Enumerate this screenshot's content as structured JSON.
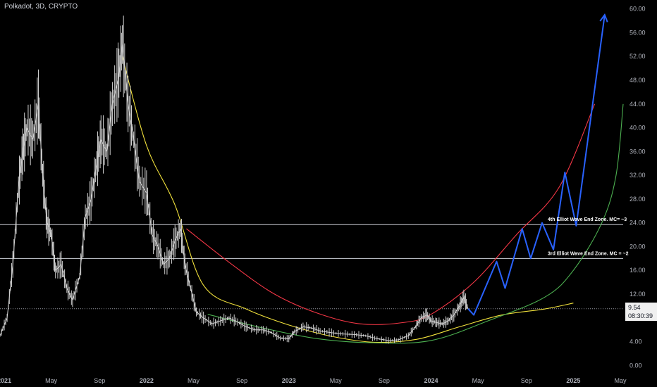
{
  "header": {
    "title": "Polkadot, 3D, CRYPTO"
  },
  "current_price": {
    "value": "9.54",
    "countdown": "08:30:39"
  },
  "chart_data": {
    "type": "line",
    "title": "Polkadot, 3D, CRYPTO",
    "xlabel": "",
    "ylabel": "",
    "ylim": [
      -1.5,
      61.5
    ],
    "xlim": [
      2020.97,
      2025.35
    ],
    "grid": false,
    "y_ticks": [
      "60.00",
      "56.00",
      "52.00",
      "48.00",
      "44.00",
      "40.00",
      "36.00",
      "32.00",
      "28.00",
      "24.00",
      "20.00",
      "16.00",
      "12.00",
      "8.00",
      "4.00",
      "0.00"
    ],
    "x_ticks": [
      {
        "label": "2021",
        "x": 2021.0
      },
      {
        "label": "May",
        "x": 2021.33
      },
      {
        "label": "Sep",
        "x": 2021.67
      },
      {
        "label": "2022",
        "x": 2022.0
      },
      {
        "label": "May",
        "x": 2022.33
      },
      {
        "label": "Sep",
        "x": 2022.67
      },
      {
        "label": "2023",
        "x": 2023.0
      },
      {
        "label": "May",
        "x": 2023.33
      },
      {
        "label": "Sep",
        "x": 2023.67
      },
      {
        "label": "2024",
        "x": 2024.0
      },
      {
        "label": "May",
        "x": 2024.33
      },
      {
        "label": "Sep",
        "x": 2024.67
      },
      {
        "label": "2025",
        "x": 2025.0
      },
      {
        "label": "May",
        "x": 2025.33
      }
    ],
    "price_series": {
      "color": "#d8d8d8",
      "points": [
        [
          2020.97,
          5.0
        ],
        [
          2021.02,
          8.0
        ],
        [
          2021.06,
          17.0
        ],
        [
          2021.1,
          30.0
        ],
        [
          2021.13,
          36.0
        ],
        [
          2021.16,
          40.0
        ],
        [
          2021.2,
          38.0
        ],
        [
          2021.24,
          44.0
        ],
        [
          2021.27,
          32.0
        ],
        [
          2021.3,
          24.0
        ],
        [
          2021.33,
          22.0
        ],
        [
          2021.36,
          16.0
        ],
        [
          2021.4,
          17.0
        ],
        [
          2021.44,
          13.0
        ],
        [
          2021.48,
          11.0
        ],
        [
          2021.53,
          15.0
        ],
        [
          2021.57,
          25.0
        ],
        [
          2021.61,
          28.0
        ],
        [
          2021.65,
          34.0
        ],
        [
          2021.68,
          38.0
        ],
        [
          2021.72,
          36.0
        ],
        [
          2021.76,
          44.0
        ],
        [
          2021.8,
          48.0
        ],
        [
          2021.83,
          54.0
        ],
        [
          2021.87,
          44.0
        ],
        [
          2021.91,
          38.0
        ],
        [
          2021.95,
          31.0
        ],
        [
          2022.0,
          29.0
        ],
        [
          2022.04,
          22.0
        ],
        [
          2022.08,
          20.0
        ],
        [
          2022.12,
          17.0
        ],
        [
          2022.16,
          18.0
        ],
        [
          2022.2,
          21.0
        ],
        [
          2022.24,
          23.0
        ],
        [
          2022.27,
          17.0
        ],
        [
          2022.31,
          13.0
        ],
        [
          2022.35,
          9.0
        ],
        [
          2022.4,
          8.0
        ],
        [
          2022.46,
          7.0
        ],
        [
          2022.52,
          7.5
        ],
        [
          2022.58,
          8.0
        ],
        [
          2022.64,
          7.3
        ],
        [
          2022.7,
          6.5
        ],
        [
          2022.76,
          6.0
        ],
        [
          2022.82,
          6.0
        ],
        [
          2022.88,
          5.5
        ],
        [
          2022.94,
          4.6
        ],
        [
          2023.0,
          4.5
        ],
        [
          2023.04,
          5.7
        ],
        [
          2023.1,
          6.5
        ],
        [
          2023.16,
          6.3
        ],
        [
          2023.22,
          5.8
        ],
        [
          2023.3,
          5.5
        ],
        [
          2023.38,
          5.3
        ],
        [
          2023.46,
          5.2
        ],
        [
          2023.54,
          5.0
        ],
        [
          2023.62,
          4.5
        ],
        [
          2023.7,
          4.2
        ],
        [
          2023.77,
          4.3
        ],
        [
          2023.84,
          5.0
        ],
        [
          2023.89,
          6.5
        ],
        [
          2023.93,
          8.0
        ],
        [
          2023.97,
          8.5
        ],
        [
          2024.0,
          7.5
        ],
        [
          2024.04,
          7.2
        ],
        [
          2024.08,
          7.0
        ],
        [
          2024.12,
          7.5
        ],
        [
          2024.16,
          8.5
        ],
        [
          2024.2,
          10.0
        ],
        [
          2024.23,
          11.5
        ],
        [
          2024.26,
          9.54
        ]
      ]
    },
    "projection_series": {
      "color": "#2962ff",
      "points": [
        [
          2024.26,
          9.54
        ],
        [
          2024.3,
          8.5
        ],
        [
          2024.46,
          17.5
        ],
        [
          2024.52,
          13.0
        ],
        [
          2024.64,
          23.0
        ],
        [
          2024.7,
          18.0
        ],
        [
          2024.78,
          24.0
        ],
        [
          2024.86,
          19.5
        ],
        [
          2024.94,
          32.5
        ],
        [
          2025.02,
          23.5
        ],
        [
          2025.22,
          59.0
        ]
      ]
    },
    "curves": [
      {
        "name": "",
        "color": "#f2e23c",
        "points": [
          [
            2021.83,
            52.0
          ],
          [
            2022.0,
            37.0
          ],
          [
            2022.2,
            27.0
          ],
          [
            2022.4,
            13.5
          ],
          [
            2022.7,
            9.5
          ],
          [
            2023.0,
            6.8
          ],
          [
            2023.3,
            4.9
          ],
          [
            2023.6,
            3.9
          ],
          [
            2023.9,
            4.4
          ],
          [
            2024.2,
            6.5
          ],
          [
            2024.5,
            8.5
          ],
          [
            2024.8,
            9.5
          ],
          [
            2025.0,
            10.5
          ]
        ]
      },
      {
        "name": "",
        "color": "#f23645",
        "points": [
          [
            2022.28,
            23.0
          ],
          [
            2022.6,
            17.0
          ],
          [
            2022.9,
            12.0
          ],
          [
            2023.2,
            8.8
          ],
          [
            2023.5,
            7.0
          ],
          [
            2023.8,
            7.2
          ],
          [
            2024.0,
            8.6
          ],
          [
            2024.3,
            14.0
          ],
          [
            2024.6,
            22.0
          ],
          [
            2024.9,
            30.0
          ],
          [
            2025.15,
            44.0
          ]
        ]
      },
      {
        "name": "",
        "color": "#4caf50",
        "points": [
          [
            2022.43,
            8.6
          ],
          [
            2022.8,
            6.4
          ],
          [
            2023.2,
            4.5
          ],
          [
            2023.6,
            3.8
          ],
          [
            2024.0,
            4.2
          ],
          [
            2024.4,
            7.5
          ],
          [
            2024.8,
            11.5
          ],
          [
            2025.0,
            16.0
          ],
          [
            2025.2,
            24.0
          ],
          [
            2025.3,
            32.0
          ],
          [
            2025.35,
            44.0
          ]
        ]
      }
    ],
    "horizontal_lines": [
      {
        "y": 23.7,
        "color": "#d1d4dc",
        "style": "solid",
        "label": "4th Elliot Wave End Zone. MC= ~3"
      },
      {
        "y": 18.0,
        "color": "#d1d4dc",
        "style": "solid",
        "label": "3rd Elliot Wave End Zone. MC = ~2"
      },
      {
        "y": 9.54,
        "color": "#9598a1",
        "style": "dotted",
        "label": ""
      }
    ]
  }
}
